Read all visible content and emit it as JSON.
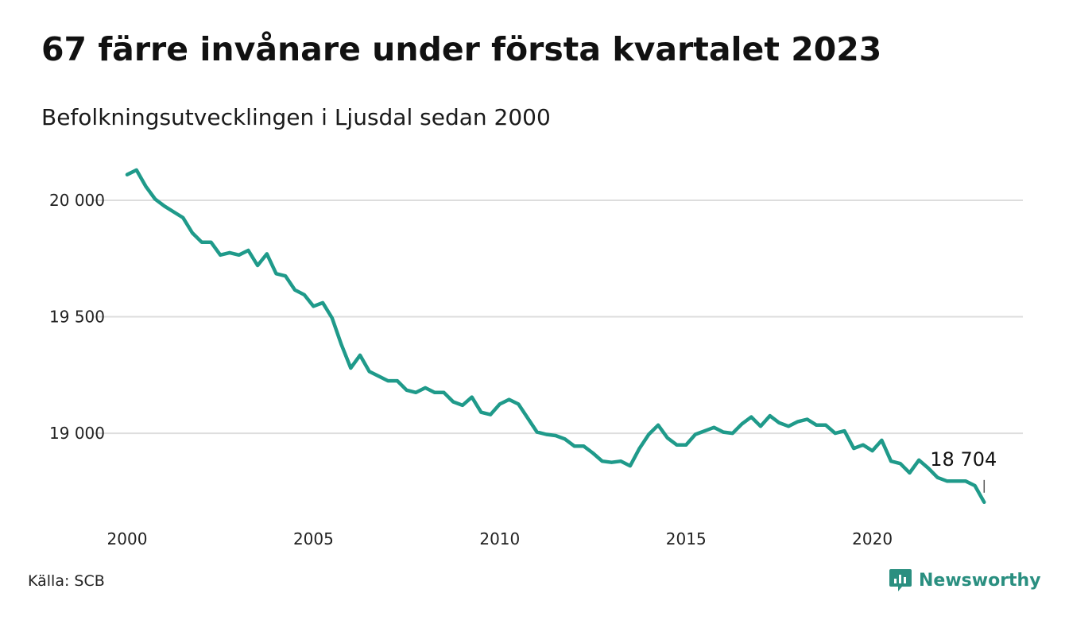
{
  "header": {
    "title": "67 färre invånare under första kvartalet 2023",
    "subtitle": "Befolkningsutvecklingen i Ljusdal sedan 2000"
  },
  "footer": {
    "source": "Källa: SCB",
    "brand": "Newsworthy",
    "brand_color": "#2a8f80"
  },
  "chart_data": {
    "type": "line",
    "line_color": "#1f9a8a",
    "grid": true,
    "xlim": [
      2000,
      2023.25
    ],
    "ylim": [
      18700,
      20150
    ],
    "x_ticks": [
      {
        "value": 2000,
        "label": "2000"
      },
      {
        "value": 2005,
        "label": "2005"
      },
      {
        "value": 2010,
        "label": "2010"
      },
      {
        "value": 2015,
        "label": "2015"
      },
      {
        "value": 2020,
        "label": "2020"
      }
    ],
    "y_ticks": [
      {
        "value": 19000,
        "label": "19 000"
      },
      {
        "value": 19500,
        "label": "19 500"
      },
      {
        "value": 20000,
        "label": "20 000"
      }
    ],
    "end_label": "18 704",
    "series": [
      {
        "x_start": 2000.0,
        "x_step": 0.25,
        "values": [
          20110,
          20130,
          20060,
          20005,
          19975,
          19950,
          19925,
          19860,
          19820,
          19820,
          19765,
          19775,
          19765,
          19785,
          19720,
          19770,
          19685,
          19675,
          19615,
          19595,
          19545,
          19560,
          19495,
          19380,
          19280,
          19335,
          19265,
          19245,
          19225,
          19225,
          19185,
          19175,
          19195,
          19175,
          19175,
          19135,
          19120,
          19155,
          19090,
          19080,
          19125,
          19145,
          19125,
          19065,
          19005,
          18995,
          18990,
          18975,
          18945,
          18945,
          18915,
          18880,
          18875,
          18880,
          18860,
          18935,
          18995,
          19035,
          18980,
          18950,
          18950,
          18995,
          19010,
          19025,
          19005,
          19000,
          19040,
          19070,
          19030,
          19075,
          19045,
          19030,
          19050,
          19060,
          19035,
          19035,
          19000,
          19010,
          18935,
          18950,
          18925,
          18970,
          18880,
          18870,
          18830,
          18885,
          18850,
          18810,
          18795,
          18795,
          18795,
          18775,
          18704
        ]
      }
    ]
  }
}
